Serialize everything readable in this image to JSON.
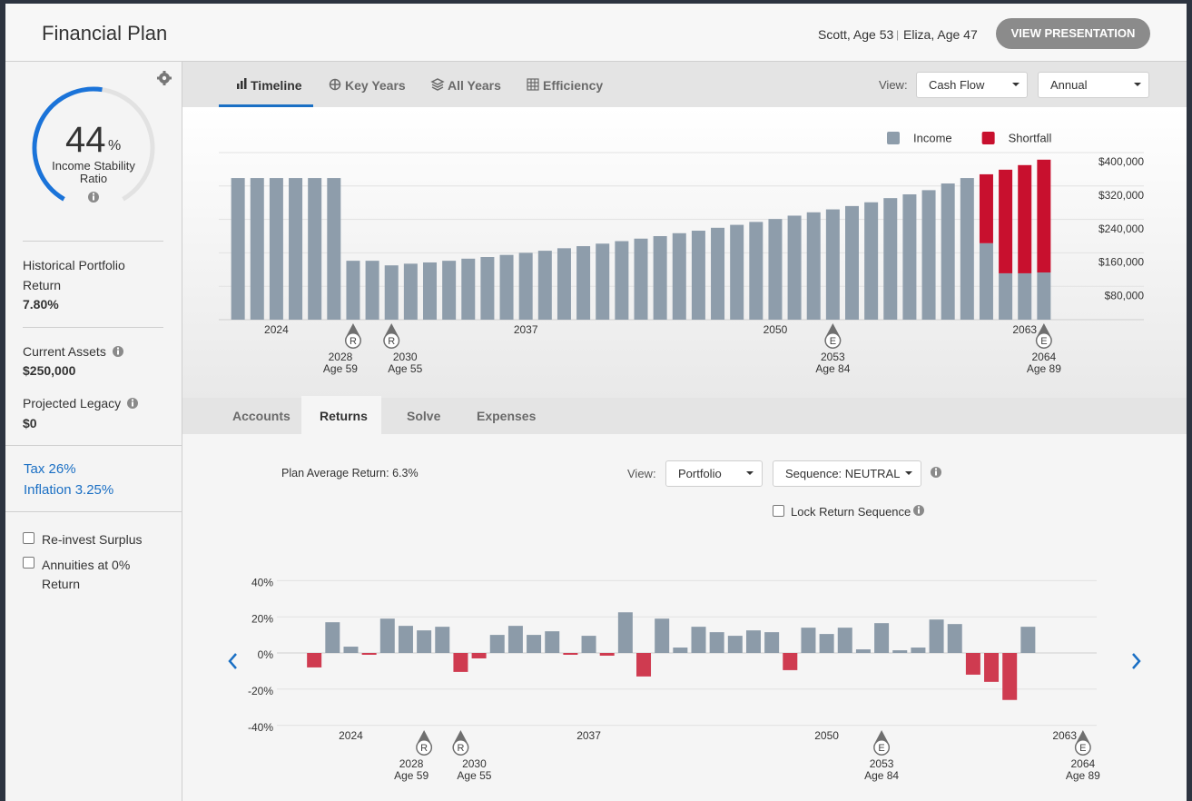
{
  "header": {
    "title": "Financial Plan",
    "client_1": "Scott, Age 53",
    "separator": "|",
    "client_2": "Eliza, Age 47",
    "button": "VIEW PRESENTATION"
  },
  "sidebar": {
    "gauge": {
      "value": 44,
      "unit": "%",
      "label": "Income Stability Ratio"
    },
    "stats": [
      {
        "label": "Historical Portfolio Return",
        "value": "7.80%"
      },
      {
        "label": "Current Assets",
        "value": "$250,000"
      },
      {
        "label": "Projected Legacy",
        "value": "$0"
      }
    ],
    "links": [
      "Tax 26%",
      "Inflation 3.25%"
    ],
    "checkboxes": [
      "Re-invest Surplus",
      "Annuities at 0% Return"
    ]
  },
  "top_tabs": [
    "Timeline",
    "Key Years",
    "All Years",
    "Efficiency"
  ],
  "top_view": {
    "label": "View:",
    "selects": [
      "Cash Flow",
      "Annual"
    ]
  },
  "bottom_tabs": [
    "Accounts",
    "Returns",
    "Solve",
    "Expenses"
  ],
  "returns_controls": {
    "average": "Plan Average Return: 6.3%",
    "view_label": "View:",
    "selects": [
      "Portfolio",
      "Sequence: NEUTRAL"
    ],
    "lock": "Lock Return Sequence"
  },
  "chart_data": [
    {
      "type": "bar",
      "stacked": true,
      "grid": true,
      "legend": "top-right",
      "x": [
        2022,
        2023,
        2024,
        2025,
        2026,
        2027,
        2028,
        2029,
        2030,
        2031,
        2032,
        2033,
        2034,
        2035,
        2036,
        2037,
        2038,
        2039,
        2040,
        2041,
        2042,
        2043,
        2044,
        2045,
        2046,
        2047,
        2048,
        2049,
        2050,
        2051,
        2052,
        2053,
        2054,
        2055,
        2056,
        2057,
        2058,
        2059,
        2060,
        2061,
        2062,
        2063,
        2064
      ],
      "xlim": [
        2021,
        2065
      ],
      "xticks": [
        2024,
        2037,
        2050,
        2063
      ],
      "ylim": [
        0,
        400000
      ],
      "yticks": [
        {
          "value": 80000,
          "label": "$80,000"
        },
        {
          "value": 160000,
          "label": "$160,000"
        },
        {
          "value": 240000,
          "label": "$240,000"
        },
        {
          "value": 320000,
          "label": "$320,000"
        },
        {
          "value": 400000,
          "label": "$400,000"
        }
      ],
      "series": [
        {
          "name": "Income",
          "color": "#8e9dab",
          "values": [
            339000,
            339000,
            339000,
            339000,
            339000,
            339000,
            141000,
            141000,
            130000,
            134000,
            137000,
            141000,
            146000,
            150000,
            155000,
            160000,
            165000,
            171000,
            176000,
            182000,
            188000,
            194000,
            200000,
            207000,
            213000,
            220000,
            227000,
            234000,
            241000,
            249000,
            257000,
            264000,
            272000,
            281000,
            291000,
            300000,
            310000,
            326000,
            339000,
            183000,
            111000,
            111000,
            113000
          ]
        },
        {
          "name": "Shortfall",
          "color": "#c8102e",
          "values": [
            0,
            0,
            0,
            0,
            0,
            0,
            0,
            0,
            0,
            0,
            0,
            0,
            0,
            0,
            0,
            0,
            0,
            0,
            0,
            0,
            0,
            0,
            0,
            0,
            0,
            0,
            0,
            0,
            0,
            0,
            0,
            0,
            0,
            0,
            0,
            0,
            0,
            0,
            0,
            165000,
            248000,
            259000,
            270000
          ]
        }
      ],
      "markers": [
        {
          "x": 2028,
          "symbol": "R",
          "note": "Age 59"
        },
        {
          "x": 2030,
          "symbol": "R",
          "note": "Age 55"
        },
        {
          "x": 2053,
          "symbol": "E",
          "note": "Age 84"
        },
        {
          "x": 2064,
          "symbol": "E",
          "note": "Age 89"
        }
      ]
    },
    {
      "type": "bar",
      "grid": true,
      "color": "#8c9ba9",
      "negative_color": "#cf3b50",
      "x": [
        2022,
        2023,
        2024,
        2025,
        2026,
        2027,
        2028,
        2029,
        2030,
        2031,
        2032,
        2033,
        2034,
        2035,
        2036,
        2037,
        2038,
        2039,
        2040,
        2041,
        2042,
        2043,
        2044,
        2045,
        2046,
        2047,
        2048,
        2049,
        2050,
        2051,
        2052,
        2053,
        2054,
        2055,
        2056,
        2057,
        2058,
        2059,
        2060,
        2061
      ],
      "xlim": [
        2021,
        2065
      ],
      "xticks": [
        2024,
        2037,
        2050,
        2063
      ],
      "ylim": [
        -40,
        40
      ],
      "yticks": [
        {
          "value": 40,
          "label": "40%"
        },
        {
          "value": 20,
          "label": "20%"
        },
        {
          "value": 0,
          "label": "0%"
        },
        {
          "value": -20,
          "label": "-20%"
        },
        {
          "value": -40,
          "label": "-40%"
        }
      ],
      "values": [
        -8,
        17,
        3.5,
        -1,
        19,
        15,
        12.5,
        14.5,
        -10.5,
        -3,
        10,
        15,
        10,
        12,
        -1,
        9.5,
        -1.5,
        22.5,
        -13,
        19,
        3,
        14.5,
        11.5,
        9.5,
        12.5,
        11.5,
        -9.5,
        14,
        10.5,
        14,
        2,
        16.5,
        1.5,
        3,
        18.5,
        16,
        -12,
        -16,
        -26,
        14.5
      ],
      "markers": [
        {
          "x": 2028,
          "symbol": "R",
          "note": "Age 59"
        },
        {
          "x": 2030,
          "symbol": "R",
          "note": "Age 55"
        },
        {
          "x": 2053,
          "symbol": "E",
          "note": "Age 84"
        },
        {
          "x": 2064,
          "symbol": "E",
          "note": "Age 89"
        }
      ]
    }
  ]
}
